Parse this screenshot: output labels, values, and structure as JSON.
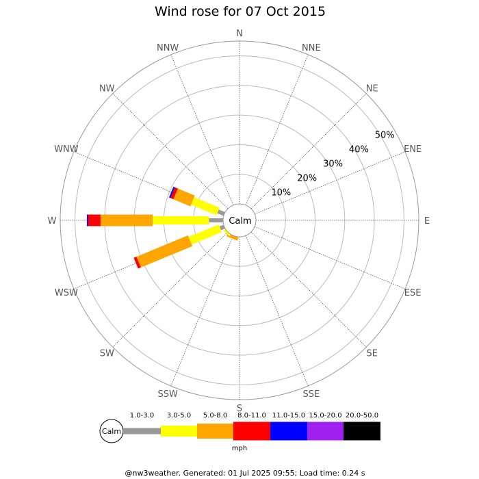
{
  "chart_data": {
    "type": "wind-rose",
    "title": "Wind rose for 07 Oct 2015",
    "directions": [
      "N",
      "NNE",
      "NE",
      "ENE",
      "E",
      "ESE",
      "SE",
      "SSE",
      "S",
      "SSW",
      "SW",
      "WSW",
      "W",
      "WNW",
      "NW",
      "NNW"
    ],
    "radial_ticks": [
      "10%",
      "20%",
      "30%",
      "40%",
      "50%"
    ],
    "radial_max": 55,
    "calm_label": "Calm",
    "speed_bins": [
      {
        "label": "1.0-3.0",
        "color": "#999999"
      },
      {
        "label": "3.0-5.0",
        "color": "#ffff00"
      },
      {
        "label": "5.0-8.0",
        "color": "#ffa500"
      },
      {
        "label": "8.0-11.0",
        "color": "#ff0000"
      },
      {
        "label": "11.0-15.0",
        "color": "#0000ff"
      },
      {
        "label": "15.0-20.0",
        "color": "#a020f0"
      },
      {
        "label": "20.0-50.0",
        "color": "#000000"
      }
    ],
    "units": "mph",
    "series": [
      {
        "direction": "SSW",
        "values": [
          0,
          0,
          1.1,
          0,
          0,
          0,
          0
        ]
      },
      {
        "direction": "SW",
        "values": [
          0,
          0.7,
          0,
          0,
          0,
          0,
          0
        ]
      },
      {
        "direction": "WSW",
        "values": [
          1.5,
          11.0,
          18.8,
          1.0,
          0,
          0,
          0
        ]
      },
      {
        "direction": "W",
        "values": [
          4.8,
          19.0,
          17.6,
          4.2,
          0.4,
          0,
          0
        ]
      },
      {
        "direction": "WNW",
        "values": [
          2.3,
          9.3,
          6.2,
          1.1,
          0.5,
          0,
          0
        ]
      }
    ]
  },
  "footer": "@nw3weather. Generated: 01 Jul 2025 09:55; Load time: 0.24 s"
}
